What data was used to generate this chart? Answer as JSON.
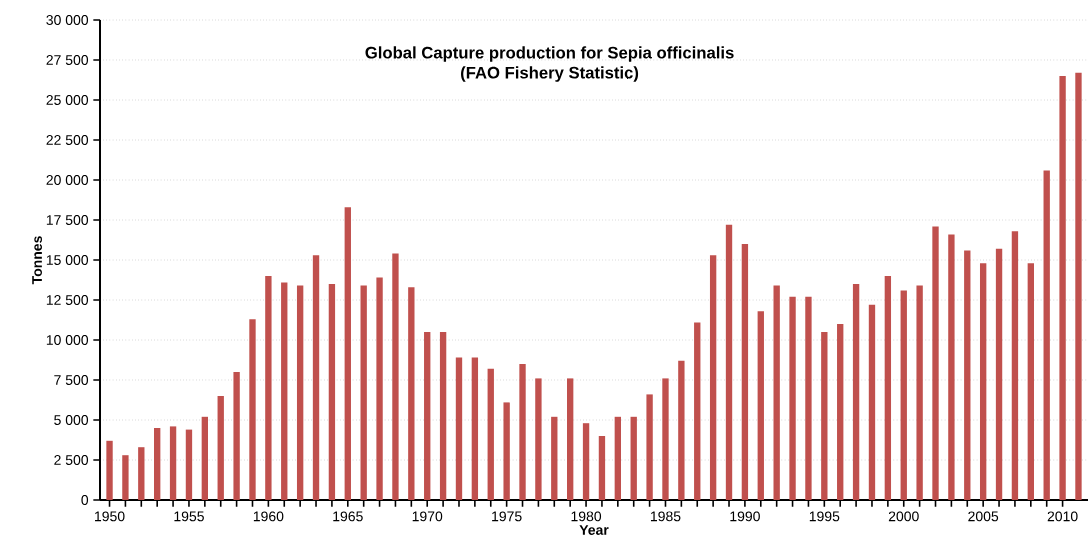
{
  "chart_data": {
    "type": "bar",
    "title": "Global Capture production for Sepia officinalis",
    "subtitle": "(FAO Fishery Statistic)",
    "xlabel": "Year",
    "ylabel": "Tonnes",
    "x": [
      1950,
      1951,
      1952,
      1953,
      1954,
      1955,
      1956,
      1957,
      1958,
      1959,
      1960,
      1961,
      1962,
      1963,
      1964,
      1965,
      1966,
      1967,
      1968,
      1969,
      1970,
      1971,
      1972,
      1973,
      1974,
      1975,
      1976,
      1977,
      1978,
      1979,
      1980,
      1981,
      1982,
      1983,
      1984,
      1985,
      1986,
      1987,
      1988,
      1989,
      1990,
      1991,
      1992,
      1993,
      1994,
      1995,
      1996,
      1997,
      1998,
      1999,
      2000,
      2001,
      2002,
      2003,
      2004,
      2005,
      2006,
      2007,
      2008,
      2009,
      2010,
      2011
    ],
    "values": [
      3700,
      2800,
      3300,
      4500,
      4600,
      4400,
      5200,
      6500,
      8000,
      11300,
      14000,
      13600,
      13400,
      15300,
      13500,
      18300,
      13400,
      13900,
      15400,
      13300,
      10500,
      10500,
      8900,
      8900,
      8200,
      6100,
      8500,
      7600,
      5200,
      7600,
      4800,
      4000,
      5200,
      5200,
      6600,
      7600,
      8700,
      11100,
      15300,
      17200,
      16000,
      11800,
      13400,
      12700,
      12700,
      10500,
      11000,
      13500,
      12200,
      14000,
      13100,
      13400,
      17100,
      16600,
      15600,
      14800,
      15700,
      16800,
      14800,
      20600,
      26500,
      26700
    ],
    "color": "#c0504d",
    "xlim": [
      1949.4,
      2011.6
    ],
    "xticks": [
      1950,
      1955,
      1960,
      1965,
      1970,
      1975,
      1980,
      1985,
      1990,
      1995,
      2000,
      2005,
      2010
    ],
    "ylim": [
      0,
      30000
    ],
    "yticks": [
      0,
      {
        "value": 2500,
        "label": "2 500"
      },
      {
        "value": 5000,
        "label": "5 000"
      },
      {
        "value": 7500,
        "label": "7 500"
      },
      {
        "value": 10000,
        "label": "10 000"
      },
      {
        "value": 12500,
        "label": "12 500"
      },
      {
        "value": 15000,
        "label": "15 000"
      },
      {
        "value": 17500,
        "label": "17 500"
      },
      {
        "value": 20000,
        "label": "20 000"
      },
      {
        "value": 22500,
        "label": "22 500"
      },
      {
        "value": 25000,
        "label": "25 000"
      },
      {
        "value": 27500,
        "label": "27 500"
      },
      {
        "value": 30000,
        "label": "30 000"
      }
    ],
    "grid": "y"
  }
}
